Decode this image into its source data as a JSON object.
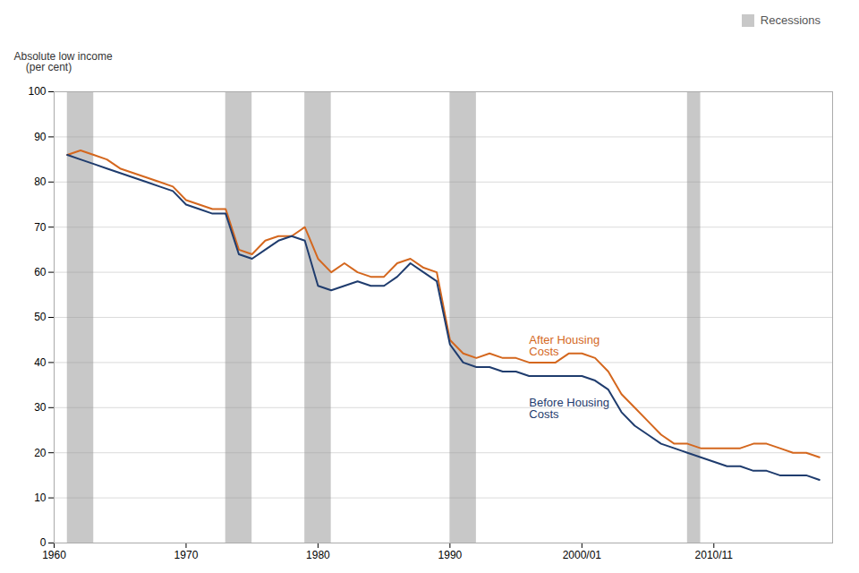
{
  "chart_data": {
    "type": "line",
    "y_label": "Absolute low income\n    (per cent)",
    "x": [
      1961,
      1962,
      1963,
      1964,
      1965,
      1966,
      1967,
      1968,
      1969,
      1970,
      1971,
      1972,
      1973,
      1974,
      1975,
      1976,
      1977,
      1978,
      1979,
      1980,
      1981,
      1982,
      1983,
      1984,
      1985,
      1986,
      1987,
      1988,
      1989,
      1990,
      1991,
      1992,
      1993,
      1994,
      1995,
      1996,
      1997,
      1998,
      1999,
      2000,
      2001,
      2002,
      2003,
      2004,
      2005,
      2006,
      2007,
      2008,
      2009,
      2010,
      2011,
      2012,
      2013,
      2014,
      2015,
      2016,
      2017,
      2018
    ],
    "series": [
      {
        "name": "After Housing\nCosts",
        "color": "#D4671E",
        "values": [
          86,
          87,
          86,
          85,
          83,
          82,
          81,
          80,
          79,
          76,
          75,
          74,
          74,
          65,
          64,
          67,
          68,
          68,
          70,
          63,
          60,
          62,
          60,
          59,
          59,
          62,
          63,
          61,
          60,
          45,
          42,
          41,
          42,
          41,
          41,
          40,
          40,
          40,
          42,
          42,
          41,
          38,
          33,
          30,
          27,
          24,
          22,
          22,
          21,
          21,
          21,
          21,
          22,
          22,
          21,
          20,
          20,
          19
        ]
      },
      {
        "name": "Before Housing\nCosts",
        "color": "#1F3C6E",
        "values": [
          86,
          85,
          84,
          83,
          82,
          81,
          80,
          79,
          78,
          75,
          74,
          73,
          73,
          64,
          63,
          65,
          67,
          68,
          67,
          57,
          56,
          57,
          58,
          57,
          57,
          59,
          62,
          60,
          58,
          44,
          40,
          39,
          39,
          38,
          38,
          37,
          37,
          37,
          37,
          37,
          36,
          34,
          29,
          26,
          24,
          22,
          21,
          20,
          19,
          18,
          17,
          17,
          16,
          16,
          15,
          15,
          15,
          14
        ]
      }
    ],
    "annotations": [
      {
        "text": "After Housing\nCosts",
        "x": 1996,
        "y": 46
      },
      {
        "text": "Before Housing\nCosts",
        "x": 1996,
        "y": 32
      }
    ],
    "recessions": {
      "name": "Recessions",
      "color": "#C8C8C8",
      "ranges": [
        [
          1961,
          1963
        ],
        [
          1973,
          1975
        ],
        [
          1979,
          1981
        ],
        [
          1990,
          1992
        ],
        [
          2008,
          2009
        ]
      ]
    },
    "legend": "upper right",
    "xlim": [
      1960,
      2019
    ],
    "xticks": [
      1960,
      1970,
      1980,
      1990,
      {
        "value": 2000,
        "label": "2000/01"
      },
      {
        "value": 2010,
        "label": "2010/11"
      }
    ],
    "ylim": [
      0,
      100
    ],
    "yticks": [
      0,
      10,
      20,
      30,
      40,
      50,
      60,
      70,
      80,
      90,
      100
    ],
    "grid": "y"
  }
}
